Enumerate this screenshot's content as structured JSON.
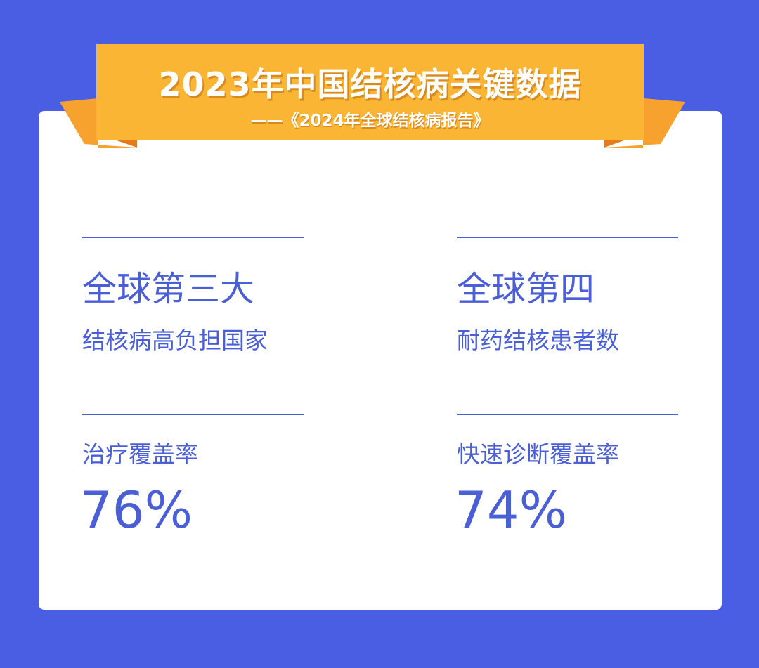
{
  "header": {
    "title": "2023年中国结核病关键数据",
    "subtitle": "——《2024年全球结核病报告》"
  },
  "stats": [
    {
      "headline": "全球第三大",
      "caption": "结核病高负担国家"
    },
    {
      "headline": "全球第四",
      "caption": "耐药结核患者数"
    },
    {
      "caption": "治疗覆盖率",
      "value": "76%"
    },
    {
      "caption": "快速诊断覆盖率",
      "value": "74%"
    }
  ],
  "colors": {
    "background": "#4a5ee3",
    "accent": "#4a5ed6",
    "banner": "#f9b533"
  }
}
